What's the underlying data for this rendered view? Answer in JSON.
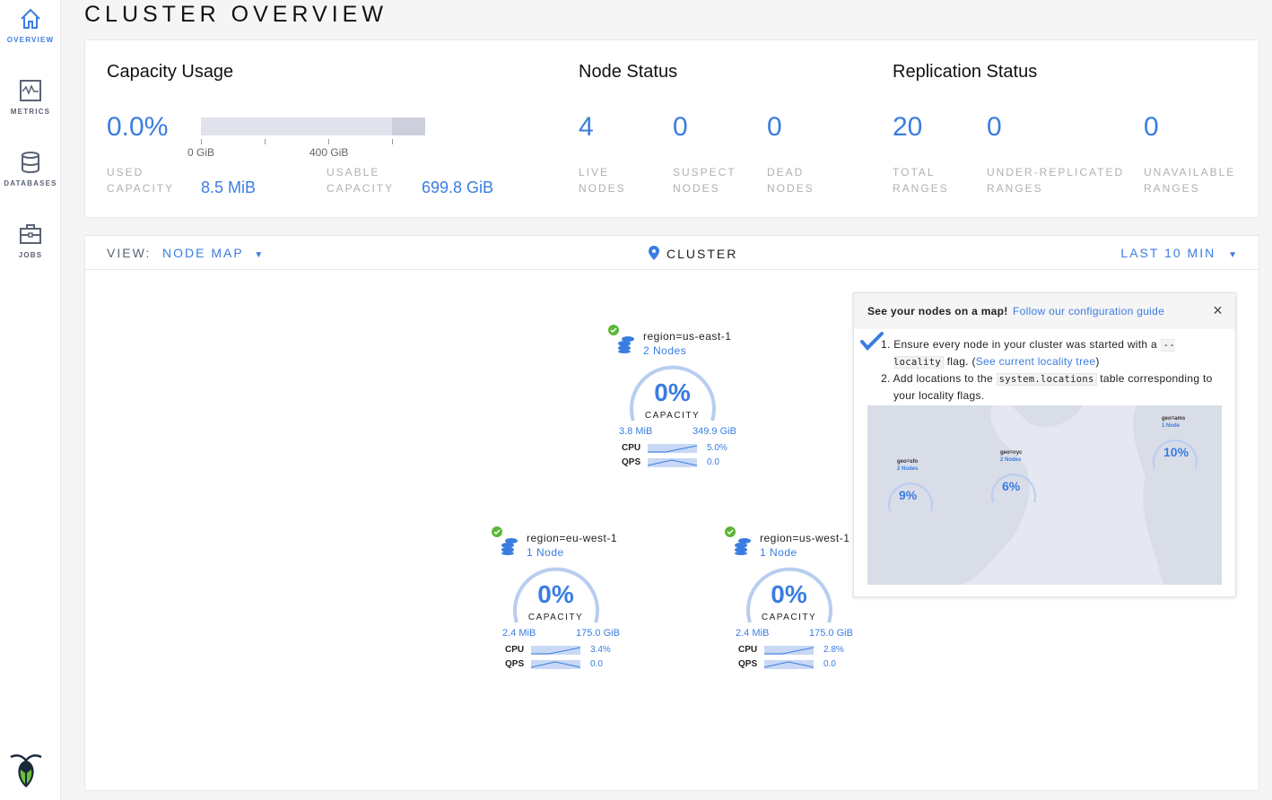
{
  "sidebar": {
    "items": [
      {
        "label": "OVERVIEW",
        "icon": "home-icon",
        "active": true
      },
      {
        "label": "METRICS",
        "icon": "metrics-icon"
      },
      {
        "label": "DATABASES",
        "icon": "database-icon"
      },
      {
        "label": "JOBS",
        "icon": "briefcase-icon"
      }
    ],
    "logo": "cockroach-logo"
  },
  "page": {
    "title": "CLUSTER OVERVIEW"
  },
  "capacity": {
    "heading": "Capacity Usage",
    "percent": "0.0%",
    "usage_fraction": 0.0,
    "ticks": [
      "0 GiB",
      "400 GiB"
    ],
    "used_label_1": "USED",
    "used_label_2": "CAPACITY",
    "used_value": "8.5 MiB",
    "usable_label_1": "USABLE",
    "usable_label_2": "CAPACITY",
    "usable_value": "699.8 GiB"
  },
  "node_status": {
    "heading": "Node Status",
    "stats": [
      {
        "value": "4",
        "l1": "LIVE",
        "l2": "NODES"
      },
      {
        "value": "0",
        "l1": "SUSPECT",
        "l2": "NODES"
      },
      {
        "value": "0",
        "l1": "DEAD",
        "l2": "NODES"
      }
    ]
  },
  "replication": {
    "heading": "Replication Status",
    "stats": [
      {
        "value": "20",
        "l1": "TOTAL",
        "l2": "RANGES"
      },
      {
        "value": "0",
        "l1": "UNDER-REPLICATED",
        "l2": "RANGES"
      },
      {
        "value": "0",
        "l1": "UNAVAILABLE",
        "l2": "RANGES"
      }
    ]
  },
  "viewbar": {
    "view_label": "VIEW:",
    "view_value": "NODE MAP",
    "location": "CLUSTER",
    "time_range": "LAST 10 MIN"
  },
  "nodes": [
    {
      "region": "region=us-east-1",
      "count": "2 Nodes",
      "percent": "0%",
      "capacity_label": "CAPACITY",
      "used": "3.8 MiB",
      "total": "349.9 GiB",
      "cpu_label": "CPU",
      "cpu": "5.0%",
      "qps_label": "QPS",
      "qps": "0.0",
      "status": "healthy"
    },
    {
      "region": "region=eu-west-1",
      "count": "1 Node",
      "percent": "0%",
      "capacity_label": "CAPACITY",
      "used": "2.4 MiB",
      "total": "175.0 GiB",
      "cpu_label": "CPU",
      "cpu": "3.4%",
      "qps_label": "QPS",
      "qps": "0.0",
      "status": "healthy"
    },
    {
      "region": "region=us-west-1",
      "count": "1 Node",
      "percent": "0%",
      "capacity_label": "CAPACITY",
      "used": "2.4 MiB",
      "total": "175.0 GiB",
      "cpu_label": "CPU",
      "cpu": "2.8%",
      "qps_label": "QPS",
      "qps": "0.0",
      "status": "healthy"
    }
  ],
  "popup": {
    "title": "See your nodes on a map!",
    "link": "Follow our configuration guide",
    "step1_a": "1. Ensure every node in your cluster was started with a",
    "step1_code": "--locality",
    "step1_b": "flag. (",
    "step1_link": "See current locality tree",
    "step1_c": ")",
    "step2_a": "2. Add locations to the",
    "step2_code": "system.locations",
    "step2_b": "table corresponding to your locality flags.",
    "map_preview": [
      {
        "name": "geo=sfo",
        "count": "2 Nodes",
        "percent": "9%"
      },
      {
        "name": "geo=nyc",
        "count": "2 Nodes",
        "percent": "6%"
      },
      {
        "name": "geo=ams",
        "count": "1 Node",
        "percent": "10%"
      }
    ]
  },
  "colors": {
    "accent": "#3a7de1",
    "healthy": "#5ab738",
    "bar_bg": "#e1e3ec",
    "gauge": "#b8cdf0"
  }
}
